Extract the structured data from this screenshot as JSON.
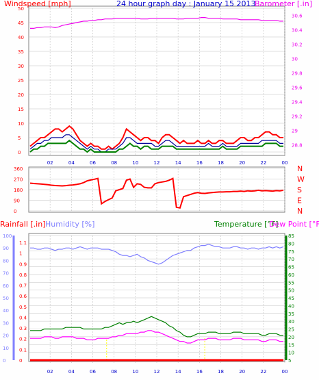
{
  "colors": {
    "wind": "#ff0000",
    "wind_gust": "#ff0000",
    "wind_avg": "#000099",
    "wind_green": "#008000",
    "barometer": "#ee00ee",
    "direction": "#ff0000",
    "rain": "#ff0000",
    "humidity": "#8080ff",
    "temperature": "#008000",
    "dewpoint": "#ff00ff",
    "grid": "#c0c0c0",
    "axis_blue": "#0000cc",
    "solar": "#ffff00"
  },
  "chart_data": [
    {
      "type": "line",
      "title": "24 hour graph day : January 15 2013",
      "left_label": "Windspeed [mph]",
      "right_label": "Barometer [.in]",
      "left_ticks": [
        "50",
        "45",
        "40",
        "35",
        "30",
        "25",
        "20",
        "15",
        "10",
        "5",
        "0"
      ],
      "right_ticks": [
        "30.6",
        "30.4",
        "30.2",
        "30",
        "29.8",
        "29.6",
        "29.4",
        "29.2",
        "29",
        "28.8"
      ],
      "x_ticks": [
        "02",
        "04",
        "06",
        "08",
        "10",
        "12",
        "14",
        "16",
        "18",
        "20",
        "22",
        "00"
      ],
      "ylim_left": [
        0,
        50
      ],
      "ylim_right": [
        28.7,
        30.7
      ],
      "series": [
        {
          "key": "wind_gust",
          "values": [
            2,
            3,
            4,
            5,
            5,
            6,
            7,
            8,
            8,
            7,
            8,
            9,
            8,
            6,
            4,
            3,
            2,
            3,
            2,
            2,
            1,
            1,
            2,
            1,
            2,
            3,
            5,
            8,
            7,
            6,
            5,
            4,
            5,
            5,
            4,
            4,
            3,
            5,
            6,
            6,
            5,
            4,
            3,
            4,
            3,
            3,
            3,
            4,
            3,
            3,
            4,
            3,
            3,
            4,
            4,
            3,
            3,
            3,
            4,
            5,
            5,
            4,
            4,
            5,
            5,
            6,
            7,
            7,
            6,
            6,
            5,
            5
          ]
        },
        {
          "key": "wind_avg",
          "values": [
            1,
            2,
            3,
            3,
            4,
            4,
            5,
            5,
            5,
            5,
            6,
            6,
            5,
            4,
            3,
            2,
            1,
            2,
            1,
            1,
            0,
            0,
            1,
            1,
            1,
            2,
            3,
            5,
            5,
            4,
            3,
            3,
            3,
            3,
            3,
            2,
            2,
            3,
            4,
            4,
            3,
            2,
            2,
            2,
            2,
            2,
            2,
            2,
            2,
            2,
            3,
            2,
            2,
            2,
            3,
            2,
            2,
            2,
            2,
            3,
            3,
            3,
            3,
            3,
            3,
            4,
            4,
            4,
            4,
            4,
            3,
            3
          ]
        },
        {
          "key": "wind_green",
          "values": [
            0,
            1,
            1,
            2,
            2,
            3,
            3,
            3,
            3,
            3,
            3,
            4,
            3,
            2,
            1,
            1,
            0,
            1,
            0,
            0,
            0,
            0,
            0,
            0,
            0,
            1,
            1,
            2,
            3,
            2,
            2,
            1,
            2,
            2,
            1,
            1,
            1,
            2,
            2,
            2,
            2,
            1,
            1,
            1,
            1,
            1,
            1,
            1,
            1,
            1,
            1,
            1,
            1,
            1,
            2,
            1,
            1,
            1,
            1,
            2,
            2,
            2,
            2,
            2,
            2,
            2,
            3,
            3,
            3,
            3,
            2,
            2
          ]
        },
        {
          "key": "barometer",
          "values": [
            30.42,
            30.42,
            30.43,
            30.43,
            30.44,
            30.44,
            30.44,
            30.43,
            30.44,
            30.46,
            30.47,
            30.48,
            30.49,
            30.5,
            30.51,
            30.52,
            30.52,
            30.53,
            30.53,
            30.54,
            30.54,
            30.55,
            30.55,
            30.55,
            30.56,
            30.56,
            30.56,
            30.56,
            30.56,
            30.56,
            30.56,
            30.55,
            30.55,
            30.55,
            30.56,
            30.56,
            30.56,
            30.56,
            30.56,
            30.56,
            30.56,
            30.55,
            30.55,
            30.55,
            30.56,
            30.56,
            30.56,
            30.56,
            30.57,
            30.57,
            30.56,
            30.56,
            30.56,
            30.56,
            30.55,
            30.55,
            30.55,
            30.55,
            30.55,
            30.54,
            30.54,
            30.54,
            30.54,
            30.54,
            30.54,
            30.53,
            30.53,
            30.53,
            30.53,
            30.53,
            30.52,
            30.52
          ]
        }
      ]
    },
    {
      "type": "scatter",
      "left_ticks": [
        "360",
        "270",
        "180",
        "90",
        "0"
      ],
      "right_letters": [
        "N",
        "W",
        "S",
        "E",
        "N"
      ],
      "ylim": [
        0,
        360
      ],
      "series": [
        {
          "key": "direction",
          "values": [
            235,
            232,
            230,
            228,
            225,
            222,
            218,
            215,
            213,
            212,
            214,
            218,
            220,
            224,
            230,
            240,
            255,
            262,
            268,
            275,
            60,
            80,
            95,
            110,
            170,
            180,
            190,
            260,
            270,
            200,
            230,
            225,
            200,
            195,
            195,
            230,
            240,
            245,
            250,
            260,
            275,
            30,
            25,
            120,
            130,
            140,
            150,
            155,
            150,
            148,
            152,
            155,
            158,
            160,
            160,
            162,
            162,
            165,
            165,
            168,
            165,
            170,
            168,
            170,
            175,
            170,
            172,
            170,
            168,
            172,
            170,
            175
          ]
        }
      ]
    },
    {
      "type": "line",
      "rain_label": "Rainfall [.in]",
      "humidity_label": "Humidity [%]",
      "temperature_label": "Temperature [°F]",
      "dewpoint_label": "Dew Point [°F]",
      "hum_ticks": [
        "100",
        "90",
        "80",
        "70",
        "60",
        "50",
        "40",
        "30",
        "20",
        "10",
        "0"
      ],
      "rain_ticks": [
        "1.1",
        "1",
        "0.9",
        "0.8",
        "0.7",
        "0.6",
        "0.5",
        "0.4",
        "0.3",
        "0.2",
        "0.1",
        "0"
      ],
      "temp_ticks": [
        "85",
        "80",
        "75",
        "70",
        "65",
        "60",
        "55",
        "50",
        "45",
        "40",
        "35",
        "30",
        "25",
        "20",
        "15",
        "10",
        "5"
      ],
      "ylim_temp": [
        5,
        85
      ],
      "ylim_hum": [
        0,
        100
      ],
      "series": [
        {
          "key": "humidity",
          "values": [
            90,
            90,
            89,
            89,
            90,
            90,
            89,
            88,
            89,
            89,
            90,
            90,
            89,
            90,
            91,
            90,
            89,
            90,
            90,
            90,
            89,
            89,
            89,
            88,
            87,
            85,
            84,
            84,
            83,
            84,
            85,
            83,
            82,
            80,
            79,
            78,
            77,
            78,
            80,
            82,
            84,
            85,
            86,
            87,
            88,
            88,
            90,
            91,
            92,
            92,
            93,
            92,
            91,
            91,
            90,
            90,
            90,
            91,
            91,
            90,
            90,
            89,
            90,
            90,
            89,
            90,
            90,
            91,
            90,
            91,
            90,
            91
          ]
        },
        {
          "key": "temperature",
          "values": [
            24,
            24,
            24,
            24,
            25,
            25,
            25,
            25,
            25,
            25,
            26,
            26,
            26,
            26,
            26,
            25,
            25,
            25,
            25,
            25,
            25,
            26,
            26,
            27,
            28,
            29,
            28,
            29,
            29,
            30,
            29,
            30,
            31,
            32,
            33,
            32,
            31,
            30,
            29,
            27,
            26,
            24,
            23,
            21,
            20,
            20,
            21,
            22,
            22,
            22,
            23,
            23,
            23,
            22,
            22,
            22,
            22,
            23,
            23,
            23,
            22,
            22,
            22,
            22,
            22,
            21,
            21,
            22,
            22,
            22,
            21,
            21
          ]
        },
        {
          "key": "dewpoint",
          "values": [
            19,
            19,
            19,
            19,
            20,
            20,
            20,
            19,
            19,
            20,
            20,
            20,
            20,
            19,
            19,
            19,
            18,
            18,
            18,
            19,
            19,
            19,
            19,
            20,
            20,
            21,
            21,
            22,
            22,
            22,
            22,
            23,
            23,
            24,
            24,
            23,
            23,
            22,
            21,
            20,
            19,
            18,
            17,
            17,
            16,
            16,
            17,
            18,
            18,
            18,
            19,
            19,
            19,
            18,
            18,
            18,
            18,
            19,
            19,
            19,
            18,
            18,
            18,
            18,
            18,
            17,
            17,
            18,
            18,
            18,
            17,
            17
          ]
        },
        {
          "key": "rain",
          "values": [
            0,
            0,
            0,
            0,
            0,
            0,
            0,
            0,
            0,
            0,
            0,
            0,
            0,
            0,
            0,
            0,
            0,
            0,
            0,
            0,
            0,
            0,
            0,
            0,
            0,
            0,
            0,
            0,
            0,
            0,
            0,
            0,
            0,
            0,
            0,
            0,
            0,
            0,
            0,
            0,
            0,
            0,
            0,
            0,
            0,
            0,
            0,
            0,
            0,
            0,
            0,
            0,
            0,
            0,
            0,
            0,
            0,
            0,
            0,
            0,
            0,
            0,
            0,
            0,
            0,
            0,
            0,
            0,
            0,
            0,
            0,
            0
          ]
        }
      ]
    }
  ]
}
